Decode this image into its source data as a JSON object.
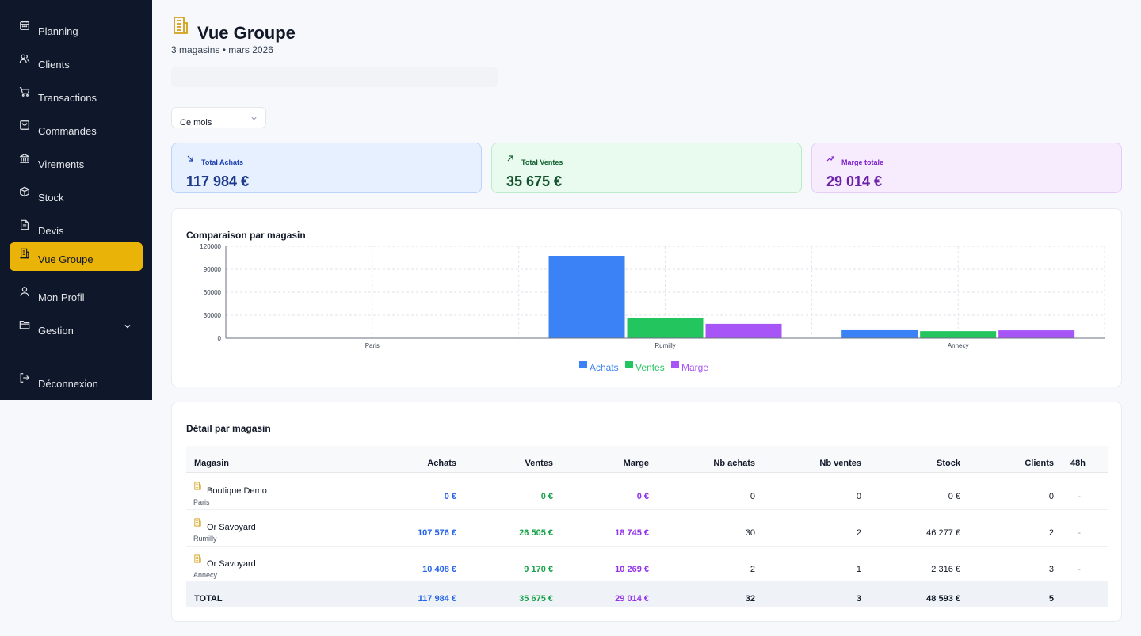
{
  "sidebar": {
    "items": [
      {
        "label": "Planning",
        "icon": "calendar-icon"
      },
      {
        "label": "Clients",
        "icon": "users-icon"
      },
      {
        "label": "Transactions",
        "icon": "cart-icon"
      },
      {
        "label": "Commandes",
        "icon": "bag-icon"
      },
      {
        "label": "Virements",
        "icon": "bank-icon"
      },
      {
        "label": "Stock",
        "icon": "box-icon"
      },
      {
        "label": "Devis",
        "icon": "document-icon"
      },
      {
        "label": "Vue Groupe",
        "icon": "building-icon",
        "active": true
      },
      {
        "label": "Mon Profil",
        "icon": "user-icon"
      },
      {
        "label": "Gestion",
        "icon": "folder-icon"
      }
    ],
    "logout": "Déconnexion"
  },
  "header": {
    "title": "Vue Groupe",
    "subtitle": "3 magasins • mars 2026"
  },
  "filter": {
    "period": "Ce mois"
  },
  "kpis": {
    "achats": {
      "title": "Total Achats",
      "value": "117 984 €"
    },
    "ventes": {
      "title": "Total Ventes",
      "value": "35 675 €"
    },
    "marge": {
      "title": "Marge totale",
      "value": "29 014 €"
    }
  },
  "colors": {
    "achats": "#3b82f6",
    "ventes": "#22c55e",
    "marge": "#a855f7",
    "accent": "#eab308"
  },
  "chart": {
    "title": "Comparaison par magasin"
  },
  "chart_data": {
    "type": "bar",
    "title": "Comparaison par magasin",
    "categories": [
      "Paris",
      "Rumilly",
      "Annecy"
    ],
    "series": [
      {
        "name": "Achats",
        "values": [
          0,
          107576,
          10408
        ]
      },
      {
        "name": "Ventes",
        "values": [
          0,
          26505,
          9170
        ]
      },
      {
        "name": "Marge",
        "values": [
          0,
          18745,
          10269
        ]
      }
    ],
    "yticks": [
      "0",
      "30000",
      "60000",
      "90000",
      "120000"
    ],
    "ylim": [
      0,
      120000
    ],
    "grid": true,
    "legend": "bottom"
  },
  "table": {
    "title": "Détail par magasin",
    "headers": {
      "magasin": "Magasin",
      "achats": "Achats",
      "ventes": "Ventes",
      "marge": "Marge",
      "nb_achats": "Nb achats",
      "nb_ventes": "Nb ventes",
      "stock": "Stock",
      "clients": "Clients",
      "h48": "48h"
    },
    "rows": [
      {
        "name": "Boutique Demo",
        "city": "Paris",
        "achats": "0 €",
        "ventes": "0 €",
        "marge": "0 €",
        "nb_achats": "0",
        "nb_ventes": "0",
        "stock": "0 €",
        "clients": "0",
        "h48": "-"
      },
      {
        "name": "Or Savoyard",
        "city": "Rumilly",
        "achats": "107 576 €",
        "ventes": "26 505 €",
        "marge": "18 745 €",
        "nb_achats": "30",
        "nb_ventes": "2",
        "stock": "46 277 €",
        "clients": "2",
        "h48": "-"
      },
      {
        "name": "Or Savoyard",
        "city": "Annecy",
        "achats": "10 408 €",
        "ventes": "9 170 €",
        "marge": "10 269 €",
        "nb_achats": "2",
        "nb_ventes": "1",
        "stock": "2 316 €",
        "clients": "3",
        "h48": "-"
      }
    ],
    "total": {
      "label": "TOTAL",
      "achats": "117 984 €",
      "ventes": "35 675 €",
      "marge": "29 014 €",
      "nb_achats": "32",
      "nb_ventes": "3",
      "stock": "48 593 €",
      "clients": "5"
    }
  }
}
